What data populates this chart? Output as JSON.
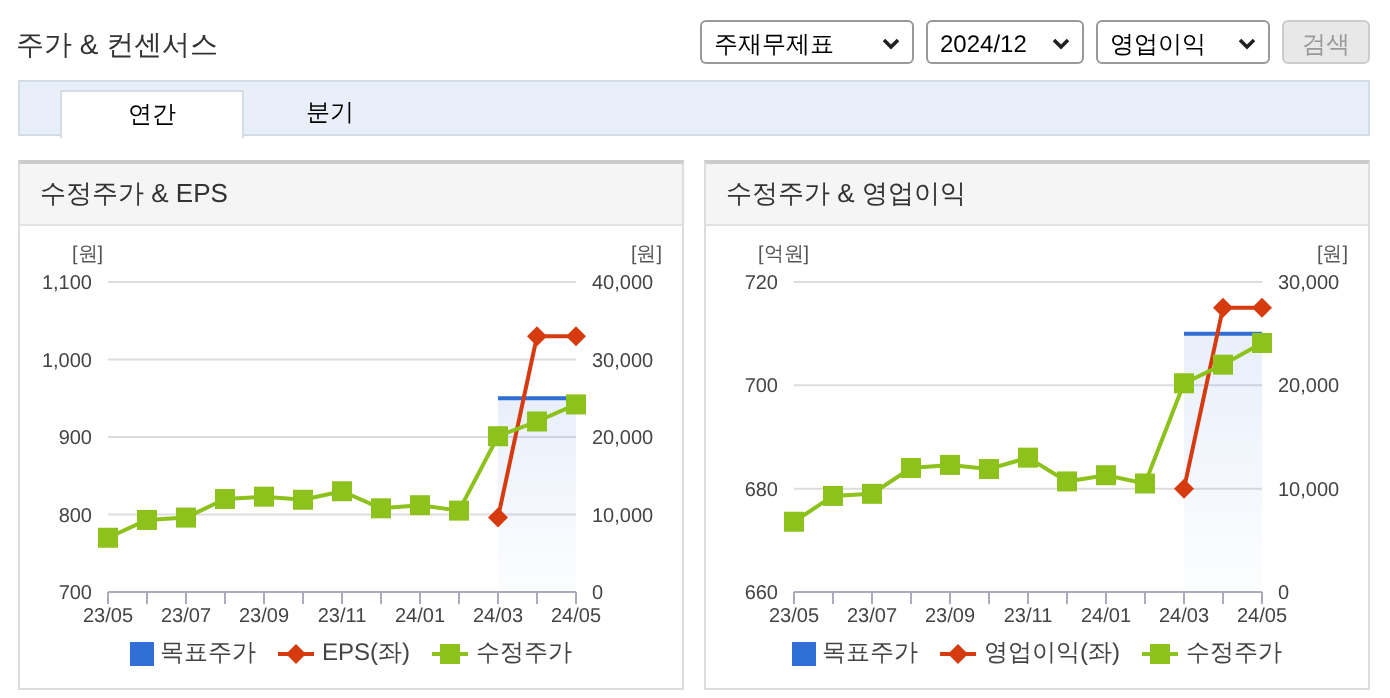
{
  "chart_data": [
    {
      "type": "line",
      "title": "수정주가 & EPS",
      "ylabel": "[원]",
      "y2label": "[원]",
      "annotations": [
        "주가 & 컨센서스",
        "주재무제표",
        "2024/12",
        "영업이익",
        "검색",
        "연간",
        "분기"
      ],
      "categories": [
        "23/05",
        null,
        "23/07",
        null,
        "23/09",
        null,
        "23/11",
        null,
        "24/01",
        null,
        "24/03",
        null,
        "24/05"
      ],
      "series": [
        {
          "name": "목표주가",
          "type": "area",
          "axis": "y2",
          "color": "#2f6fd6",
          "values": [
            null,
            null,
            null,
            null,
            null,
            null,
            null,
            null,
            null,
            null,
            25000,
            25000,
            25000
          ]
        },
        {
          "name": "EPS(좌)",
          "color": "#d63b0f",
          "marker": "diamond",
          "values": [
            null,
            null,
            null,
            null,
            null,
            null,
            null,
            null,
            null,
            null,
            796,
            1030,
            1030
          ]
        },
        {
          "name": "수정주가",
          "axis": "y2",
          "color": "#8cc21b",
          "marker": "square",
          "values": [
            7000,
            9300,
            9600,
            12000,
            12300,
            11900,
            13000,
            10800,
            11200,
            10500,
            20100,
            22000,
            24200
          ]
        }
      ],
      "ylim": [
        700,
        1100
      ],
      "yticks": [
        700,
        800,
        900,
        {
          "value": 1000,
          "label": "1,000"
        },
        {
          "value": 1100,
          "label": "1,100"
        }
      ],
      "y2lim": [
        0,
        40000
      ],
      "y2ticks": [
        0,
        {
          "value": 10000,
          "label": "10,000"
        },
        {
          "value": 20000,
          "label": "20,000"
        },
        {
          "value": 30000,
          "label": "30,000"
        },
        {
          "value": 40000,
          "label": "40,000"
        }
      ],
      "grid": "y",
      "legend": "bottom"
    },
    {
      "type": "line",
      "title": "수정주가 & 영업이익",
      "ylabel": "[억원]",
      "y2label": "[원]",
      "categories": [
        "23/05",
        null,
        "23/07",
        null,
        "23/09",
        null,
        "23/11",
        null,
        "24/01",
        null,
        "24/03",
        null,
        "24/05"
      ],
      "series": [
        {
          "name": "목표주가",
          "type": "area",
          "axis": "y2",
          "color": "#2f6fd6",
          "values": [
            null,
            null,
            null,
            null,
            null,
            null,
            null,
            null,
            null,
            null,
            25000,
            25000,
            25000
          ]
        },
        {
          "name": "영업이익(좌)",
          "color": "#d63b0f",
          "marker": "diamond",
          "values": [
            null,
            null,
            null,
            null,
            null,
            null,
            null,
            null,
            null,
            null,
            680,
            715,
            715
          ]
        },
        {
          "name": "수정주가",
          "axis": "y2",
          "color": "#8cc21b",
          "marker": "square",
          "values": [
            6800,
            9300,
            9500,
            12000,
            12300,
            11900,
            13000,
            10700,
            11300,
            10500,
            20200,
            22000,
            24100
          ]
        }
      ],
      "ylim": [
        660,
        720
      ],
      "yticks": [
        660,
        680,
        700,
        720
      ],
      "y2lim": [
        0,
        30000
      ],
      "y2ticks": [
        0,
        {
          "value": 10000,
          "label": "10,000"
        },
        {
          "value": 20000,
          "label": "20,000"
        },
        {
          "value": 30000,
          "label": "30,000"
        }
      ],
      "grid": "y",
      "legend": "bottom"
    }
  ]
}
